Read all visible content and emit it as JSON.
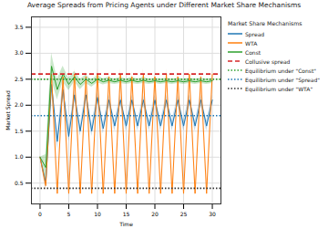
{
  "chart_data": {
    "type": "line",
    "title": "Average Spreads from Pricing Agents under Different Market Share Mechanisms",
    "x_label": "Time",
    "y_label": "Market Spread",
    "x": [
      0,
      1,
      2,
      3,
      4,
      5,
      6,
      7,
      8,
      9,
      10,
      11,
      12,
      13,
      14,
      15,
      16,
      17,
      18,
      19,
      20,
      21,
      22,
      23,
      24,
      25,
      26,
      27,
      28,
      29,
      30
    ],
    "xlim": [
      -1.5,
      31.5
    ],
    "xticks": [
      0,
      5,
      10,
      15,
      20,
      25,
      30
    ],
    "ylim": [
      0.1,
      3.7
    ],
    "yticks": [
      0.5,
      1.0,
      1.5,
      2.0,
      2.5,
      3.0,
      3.5
    ],
    "grid": true,
    "legend": "right",
    "legend_title": "Market Share Mechanisms",
    "series": [
      {
        "name": "Spread",
        "color": "#1f77b4",
        "line_style": "solid",
        "values": [
          1.0,
          0.5,
          2.4,
          1.3,
          2.3,
          1.4,
          2.2,
          1.5,
          2.2,
          1.5,
          2.15,
          1.55,
          2.1,
          1.6,
          2.1,
          1.6,
          2.1,
          1.6,
          2.1,
          1.6,
          2.1,
          1.6,
          2.1,
          1.6,
          2.1,
          1.6,
          2.1,
          1.6,
          2.1,
          1.6,
          2.1
        ],
        "lower": [
          1.0,
          0.4,
          2.25,
          1.15,
          2.15,
          1.3,
          2.1,
          1.4,
          2.1,
          1.4,
          2.05,
          1.45,
          2.0,
          1.5,
          2.0,
          1.5,
          2.0,
          1.5,
          2.0,
          1.5,
          2.0,
          1.5,
          2.0,
          1.5,
          2.0,
          1.5,
          2.0,
          1.5,
          2.0,
          1.5,
          2.0
        ],
        "upper": [
          1.0,
          0.6,
          2.55,
          1.45,
          2.45,
          1.5,
          2.3,
          1.6,
          2.3,
          1.6,
          2.25,
          1.65,
          2.2,
          1.7,
          2.2,
          1.7,
          2.2,
          1.7,
          2.2,
          1.7,
          2.2,
          1.7,
          2.2,
          1.7,
          2.2,
          1.7,
          2.2,
          1.7,
          2.2,
          1.7,
          2.2
        ]
      },
      {
        "name": "WTA",
        "color": "#ff7f0e",
        "line_style": "solid",
        "values": [
          1.0,
          0.45,
          2.6,
          0.3,
          2.55,
          0.3,
          2.6,
          0.3,
          2.55,
          0.3,
          2.6,
          0.3,
          2.55,
          0.3,
          2.6,
          0.3,
          2.55,
          0.3,
          2.6,
          0.3,
          2.55,
          0.3,
          2.6,
          0.3,
          2.55,
          0.3,
          2.6,
          0.3,
          2.55,
          0.3,
          2.6
        ],
        "lower": [
          1.0,
          0.35,
          2.5,
          0.25,
          2.45,
          0.25,
          2.5,
          0.25,
          2.45,
          0.25,
          2.5,
          0.25,
          2.45,
          0.25,
          2.5,
          0.25,
          2.45,
          0.25,
          2.5,
          0.25,
          2.45,
          0.25,
          2.5,
          0.25,
          2.45,
          0.25,
          2.5,
          0.25,
          2.45,
          0.25,
          2.5
        ],
        "upper": [
          1.0,
          0.55,
          2.7,
          0.35,
          2.65,
          0.35,
          2.7,
          0.35,
          2.65,
          0.35,
          2.7,
          0.35,
          2.65,
          0.35,
          2.7,
          0.35,
          2.65,
          0.35,
          2.7,
          0.35,
          2.65,
          0.35,
          2.7,
          0.35,
          2.65,
          0.35,
          2.7,
          0.35,
          2.65,
          0.35,
          2.7
        ]
      },
      {
        "name": "Const",
        "color": "#2ca02c",
        "line_style": "solid",
        "values": [
          1.0,
          0.8,
          2.75,
          2.3,
          2.6,
          2.4,
          2.55,
          2.4,
          2.5,
          2.42,
          2.5,
          2.45,
          2.48,
          2.45,
          2.48,
          2.45,
          2.48,
          2.45,
          2.48,
          2.45,
          2.47,
          2.45,
          2.47,
          2.45,
          2.47,
          2.45,
          2.47,
          2.45,
          2.47,
          2.45,
          2.47
        ],
        "lower": [
          1.0,
          0.55,
          2.5,
          2.1,
          2.45,
          2.28,
          2.45,
          2.3,
          2.42,
          2.35,
          2.43,
          2.39,
          2.42,
          2.4,
          2.42,
          2.4,
          2.42,
          2.4,
          2.42,
          2.4,
          2.42,
          2.4,
          2.42,
          2.4,
          2.42,
          2.4,
          2.42,
          2.4,
          2.42,
          2.4,
          2.42
        ],
        "upper": [
          1.0,
          1.05,
          3.0,
          2.5,
          2.75,
          2.52,
          2.65,
          2.5,
          2.58,
          2.49,
          2.57,
          2.51,
          2.54,
          2.5,
          2.54,
          2.5,
          2.54,
          2.5,
          2.54,
          2.5,
          2.52,
          2.5,
          2.52,
          2.5,
          2.52,
          2.5,
          2.52,
          2.5,
          2.52,
          2.5,
          2.52
        ]
      }
    ],
    "reference_lines": [
      {
        "name": "Collusive spread",
        "value": 2.6,
        "color": "#d62728",
        "line_style": "dashed"
      },
      {
        "name": "Equilibrium under \"Const\"",
        "value": 2.5,
        "color": "#2ca02c",
        "line_style": "dotted"
      },
      {
        "name": "Equilibrium under \"Spread\"",
        "value": 1.8,
        "color": "#1f77b4",
        "line_style": "dotted"
      },
      {
        "name": "Equilibrium under \"WTA\"",
        "value": 0.4,
        "color": "#333333",
        "line_style": "dotted"
      }
    ]
  }
}
